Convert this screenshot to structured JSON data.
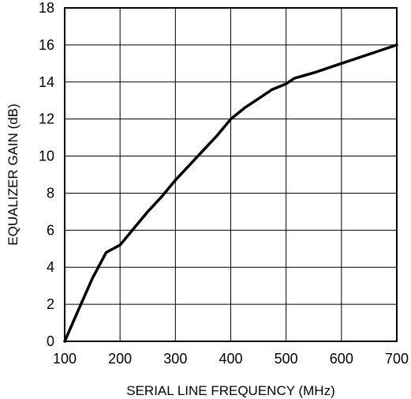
{
  "chart_data": {
    "type": "line",
    "title": "",
    "xlabel": "SERIAL LINE FREQUENCY (MHz)",
    "ylabel": "EQUALIZER GAIN (dB)",
    "xlim": [
      100,
      700
    ],
    "ylim": [
      0,
      18
    ],
    "x_ticks": [
      100,
      200,
      300,
      400,
      500,
      600,
      700
    ],
    "y_ticks": [
      0,
      2,
      4,
      6,
      8,
      10,
      12,
      14,
      16,
      18
    ],
    "grid": true,
    "legend": "none",
    "series": [
      {
        "color": "#000000",
        "x": [
          100,
          125,
          150,
          175,
          200,
          225,
          250,
          275,
          300,
          325,
          350,
          375,
          400,
          425,
          450,
          475,
          500,
          515,
          550,
          600,
          650,
          700
        ],
        "y": [
          0,
          1.7,
          3.4,
          4.8,
          5.2,
          6.1,
          7.0,
          7.8,
          8.7,
          9.5,
          10.3,
          11.1,
          12.0,
          12.6,
          13.1,
          13.6,
          13.9,
          14.2,
          14.5,
          15.0,
          15.5,
          16.0
        ]
      }
    ]
  }
}
